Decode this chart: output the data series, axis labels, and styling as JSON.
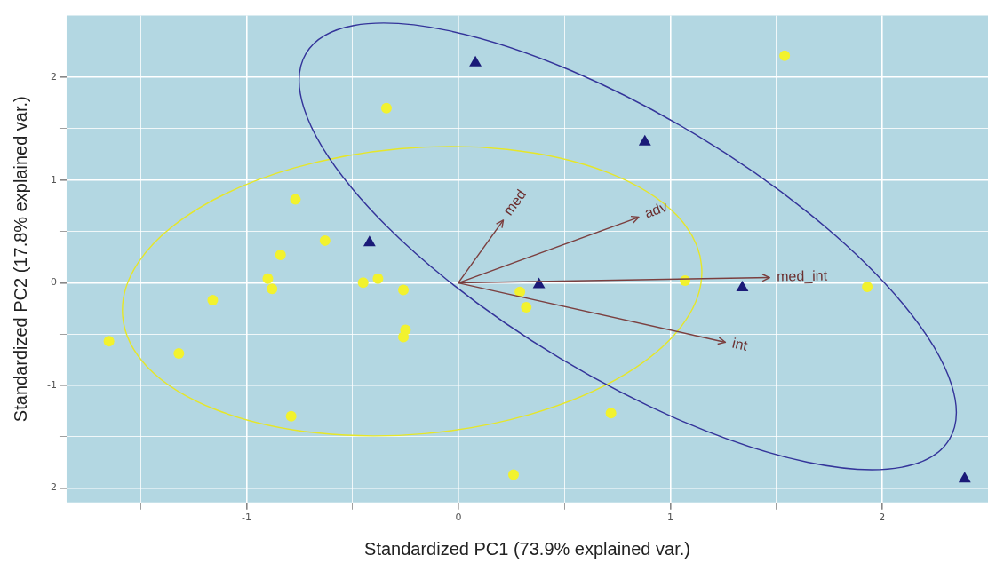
{
  "chart_data": {
    "type": "scatter",
    "xlabel": "Standardized PC1 (73.9% explained var.)",
    "ylabel": "Standardized PC2 (17.8% explained var.)",
    "xlim": [
      -1.85,
      2.5
    ],
    "ylim": [
      -2.14,
      2.6
    ],
    "xticks": [
      {
        "value": -1.5,
        "label": null
      },
      -1,
      {
        "value": -0.5,
        "label": null
      },
      0,
      {
        "value": 0.5,
        "label": null
      },
      1,
      {
        "value": 1.5,
        "label": null
      },
      2
    ],
    "yticks": [
      {
        "value": -1.5,
        "label": null
      },
      -2,
      -1,
      {
        "value": -0.5,
        "label": null
      },
      0,
      {
        "value": 0.5,
        "label": null
      },
      1,
      {
        "value": 1.5,
        "label": null
      },
      2
    ],
    "grid": true,
    "legend": false,
    "series": [
      {
        "color": "#f2f22e",
        "marker": "circle",
        "x": [
          -1.65,
          -1.32,
          -1.16,
          -0.77,
          -0.63,
          -0.84,
          -0.9,
          -0.88,
          -0.79,
          -0.34,
          -0.45,
          -0.38,
          -0.26,
          -0.25,
          -0.26,
          0.29,
          0.32,
          0.26,
          0.72,
          1.07,
          1.54,
          1.93
        ],
        "values": [
          -0.57,
          -0.69,
          -0.17,
          0.81,
          0.41,
          0.27,
          0.04,
          -0.06,
          -1.3,
          1.7,
          0.0,
          0.04,
          -0.07,
          -0.46,
          -0.53,
          -0.09,
          -0.24,
          -1.87,
          -1.27,
          0.02,
          2.21,
          -0.04
        ]
      },
      {
        "color": "#1a1a78",
        "marker": "triangle",
        "x": [
          0.08,
          0.88,
          -0.42,
          0.38,
          1.34,
          2.39
        ],
        "values": [
          2.14,
          1.37,
          0.39,
          -0.02,
          -0.05,
          -1.91
        ]
      }
    ],
    "annotations": [
      "med",
      "adv",
      "med_int",
      "int"
    ]
  }
}
